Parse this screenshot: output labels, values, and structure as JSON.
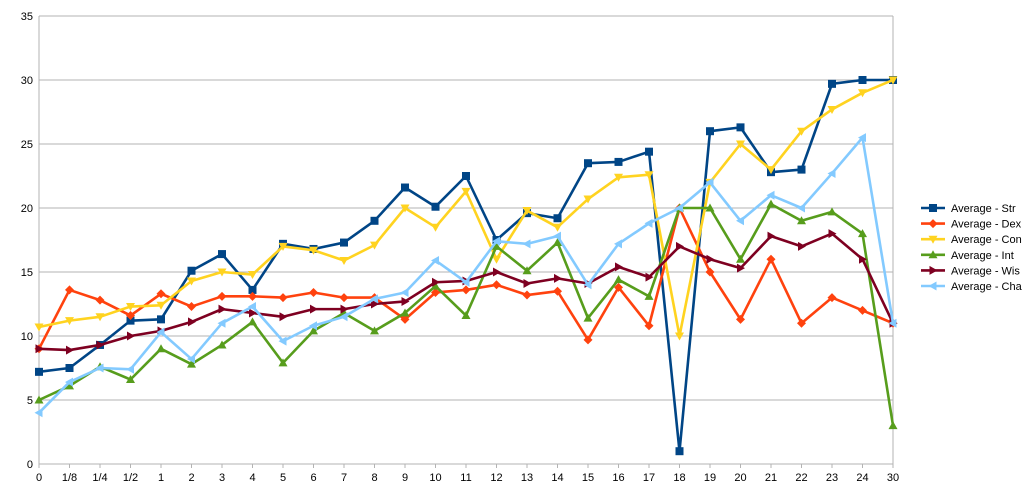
{
  "chart_data": {
    "type": "line",
    "title": "",
    "xlabel": "",
    "ylabel": "",
    "ylim": [
      0,
      35
    ],
    "yticks": [
      0,
      5,
      10,
      15,
      20,
      25,
      30,
      35
    ],
    "grid": "horizontal",
    "legend_position": "right",
    "categories": [
      "0",
      "1/8",
      "1/4",
      "1/2",
      "1",
      "2",
      "3",
      "4",
      "5",
      "6",
      "7",
      "8",
      "9",
      "10",
      "11",
      "12",
      "13",
      "14",
      "15",
      "16",
      "17",
      "18",
      "19",
      "20",
      "21",
      "22",
      "23",
      "24",
      "30"
    ],
    "series": [
      {
        "name": "Average - Str",
        "color": "#004586",
        "marker": "square",
        "values": [
          7.2,
          7.5,
          9.3,
          11.2,
          11.3,
          15.1,
          16.4,
          13.6,
          17.2,
          16.8,
          17.3,
          19.0,
          21.6,
          20.1,
          22.5,
          17.5,
          19.6,
          19.2,
          23.5,
          23.6,
          24.4,
          1.0,
          26.0,
          26.3,
          22.8,
          23.0,
          29.7,
          30.0,
          30.0
        ]
      },
      {
        "name": "Average - Dex",
        "color": "#ff420e",
        "marker": "diamond",
        "values": [
          9.0,
          13.6,
          12.8,
          11.6,
          13.3,
          12.3,
          13.1,
          13.1,
          13.0,
          13.4,
          13.0,
          13.0,
          11.3,
          13.4,
          13.6,
          14.0,
          13.2,
          13.5,
          9.7,
          13.8,
          10.8,
          20.0,
          15.0,
          11.3,
          16.0,
          11.0,
          13.0,
          12.0,
          11.0
        ]
      },
      {
        "name": "Average - Con",
        "color": "#ffd320",
        "marker": "triangle-down",
        "values": [
          10.7,
          11.2,
          11.5,
          12.3,
          12.4,
          14.3,
          15.0,
          14.8,
          17.0,
          16.7,
          15.9,
          17.1,
          20.0,
          18.5,
          21.3,
          16.0,
          19.8,
          18.5,
          20.7,
          22.4,
          22.6,
          10.0,
          22.0,
          25.0,
          23.0,
          26.0,
          27.7,
          29.0,
          30.0
        ]
      },
      {
        "name": "Average - Int",
        "color": "#579d1c",
        "marker": "triangle-up",
        "values": [
          5.0,
          6.1,
          7.6,
          6.6,
          9.0,
          7.8,
          9.3,
          11.1,
          7.9,
          10.4,
          11.8,
          10.4,
          11.8,
          13.9,
          11.6,
          17.0,
          15.1,
          17.3,
          11.4,
          14.4,
          13.1,
          20.0,
          20.0,
          16.0,
          20.3,
          19.0,
          19.7,
          18.0,
          3.0
        ]
      },
      {
        "name": "Average - Wis",
        "color": "#7e0021",
        "marker": "triangle-right",
        "values": [
          9.0,
          8.9,
          9.3,
          10.0,
          10.4,
          11.1,
          12.1,
          11.8,
          11.5,
          12.1,
          12.1,
          12.5,
          12.7,
          14.2,
          14.3,
          15.0,
          14.1,
          14.5,
          14.1,
          15.4,
          14.6,
          17.0,
          16.0,
          15.3,
          17.8,
          17.0,
          18.0,
          16.0,
          11.0
        ]
      },
      {
        "name": "Average - Cha",
        "color": "#83caff",
        "marker": "triangle-left",
        "values": [
          4.0,
          6.4,
          7.5,
          7.4,
          10.3,
          8.2,
          11.0,
          12.3,
          9.6,
          10.8,
          11.5,
          12.9,
          13.4,
          15.9,
          14.2,
          17.4,
          17.2,
          17.8,
          14.0,
          17.2,
          18.8,
          20.0,
          22.0,
          19.0,
          21.0,
          20.0,
          22.7,
          25.5,
          11.0
        ]
      }
    ]
  }
}
